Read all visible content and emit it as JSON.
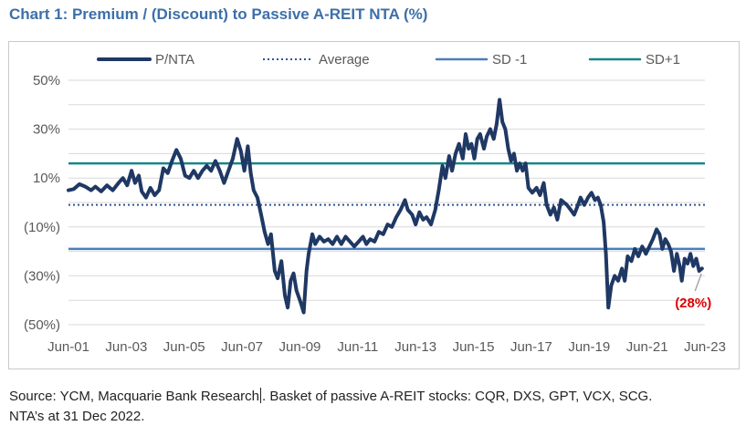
{
  "title": "Chart 1: Premium / (Discount) to Passive A-REIT NTA (%)",
  "source": {
    "line1_part1": "Source: YCM, Macquarie Bank Research",
    "line1_part2": ". Basket of passive A-REIT stocks: CQR, DXS, GPT, VCX, SCG.",
    "line2": "NTA’s at 31 Dec 2022."
  },
  "colors": {
    "pnta": "#1f3864",
    "average": "#2e5597",
    "sd_minus": "#4a7ebb",
    "sd_plus": "#17868b",
    "annotation": "#e00000",
    "grid": "#d9d9d9",
    "title": "#3d6fa8"
  },
  "chart_data": {
    "type": "line",
    "title": "Chart 1: Premium / (Discount) to Passive A-REIT NTA (%)",
    "xlabel": "",
    "ylabel": "",
    "x_ticks": [
      "Jun-01",
      "Jun-03",
      "Jun-05",
      "Jun-07",
      "Jun-09",
      "Jun-11",
      "Jun-13",
      "Jun-15",
      "Jun-17",
      "Jun-19",
      "Jun-21",
      "Jun-23"
    ],
    "y_ticks": [
      "50%",
      "30%",
      "10%",
      "(10%)",
      "(30%)",
      "(50%)"
    ],
    "y_tick_values": [
      50,
      30,
      10,
      -10,
      -30,
      -50
    ],
    "ylim": [
      -50,
      50
    ],
    "xlim": [
      2001.42,
      2023.42
    ],
    "grid": true,
    "legend_position": "top",
    "legend": [
      "P/NTA",
      "Average",
      "SD -1",
      "SD+1"
    ],
    "reference_lines": [
      {
        "name": "Average",
        "value": -1,
        "style": "dotted"
      },
      {
        "name": "SD -1",
        "value": -19,
        "style": "solid"
      },
      {
        "name": "SD+1",
        "value": 16,
        "style": "solid"
      }
    ],
    "annotation": {
      "label": "(28%)",
      "x": 2023.3,
      "y": -28
    },
    "series": [
      {
        "name": "P/NTA",
        "points": [
          [
            2001.42,
            5
          ],
          [
            2001.6,
            5.5
          ],
          [
            2001.8,
            7.5
          ],
          [
            2002.0,
            6.5
          ],
          [
            2002.2,
            5
          ],
          [
            2002.35,
            6.5
          ],
          [
            2002.55,
            4.5
          ],
          [
            2002.75,
            7
          ],
          [
            2002.95,
            5
          ],
          [
            2003.15,
            8
          ],
          [
            2003.3,
            10
          ],
          [
            2003.45,
            7
          ],
          [
            2003.6,
            13
          ],
          [
            2003.72,
            8
          ],
          [
            2003.85,
            11
          ],
          [
            2003.95,
            4.5
          ],
          [
            2004.1,
            2
          ],
          [
            2004.25,
            6
          ],
          [
            2004.4,
            3
          ],
          [
            2004.55,
            5
          ],
          [
            2004.7,
            14
          ],
          [
            2004.85,
            12
          ],
          [
            2005.0,
            17
          ],
          [
            2005.15,
            21.5
          ],
          [
            2005.3,
            18
          ],
          [
            2005.45,
            11
          ],
          [
            2005.6,
            10
          ],
          [
            2005.75,
            13
          ],
          [
            2005.9,
            10
          ],
          [
            2006.05,
            13
          ],
          [
            2006.2,
            15
          ],
          [
            2006.35,
            13
          ],
          [
            2006.5,
            17
          ],
          [
            2006.65,
            13
          ],
          [
            2006.8,
            8
          ],
          [
            2006.95,
            13
          ],
          [
            2007.1,
            18
          ],
          [
            2007.25,
            26
          ],
          [
            2007.38,
            21
          ],
          [
            2007.5,
            13
          ],
          [
            2007.62,
            23
          ],
          [
            2007.72,
            12
          ],
          [
            2007.82,
            5
          ],
          [
            2007.95,
            2
          ],
          [
            2008.08,
            -5
          ],
          [
            2008.2,
            -12
          ],
          [
            2008.32,
            -17
          ],
          [
            2008.42,
            -13
          ],
          [
            2008.55,
            -28
          ],
          [
            2008.65,
            -31
          ],
          [
            2008.78,
            -24
          ],
          [
            2008.9,
            -38
          ],
          [
            2009.0,
            -43
          ],
          [
            2009.1,
            -32
          ],
          [
            2009.2,
            -29
          ],
          [
            2009.3,
            -36
          ],
          [
            2009.45,
            -41
          ],
          [
            2009.55,
            -45
          ],
          [
            2009.65,
            -28
          ],
          [
            2009.72,
            -21
          ],
          [
            2009.85,
            -13
          ],
          [
            2009.95,
            -17
          ],
          [
            2010.1,
            -14
          ],
          [
            2010.25,
            -16
          ],
          [
            2010.4,
            -15
          ],
          [
            2010.55,
            -17
          ],
          [
            2010.7,
            -14
          ],
          [
            2010.85,
            -17
          ],
          [
            2011.0,
            -14
          ],
          [
            2011.15,
            -16
          ],
          [
            2011.3,
            -18
          ],
          [
            2011.45,
            -16
          ],
          [
            2011.6,
            -14
          ],
          [
            2011.72,
            -17
          ],
          [
            2011.85,
            -15
          ],
          [
            2012.0,
            -16
          ],
          [
            2012.15,
            -12
          ],
          [
            2012.3,
            -13
          ],
          [
            2012.45,
            -9
          ],
          [
            2012.6,
            -10
          ],
          [
            2012.75,
            -6
          ],
          [
            2012.9,
            -3
          ],
          [
            2013.05,
            1
          ],
          [
            2013.15,
            -3
          ],
          [
            2013.3,
            -5
          ],
          [
            2013.42,
            -9
          ],
          [
            2013.55,
            -4
          ],
          [
            2013.68,
            -7
          ],
          [
            2013.8,
            -6
          ],
          [
            2013.95,
            -9
          ],
          [
            2014.1,
            -3
          ],
          [
            2014.22,
            5
          ],
          [
            2014.35,
            15
          ],
          [
            2014.45,
            10
          ],
          [
            2014.58,
            19
          ],
          [
            2014.68,
            13
          ],
          [
            2014.8,
            20
          ],
          [
            2014.92,
            24
          ],
          [
            2015.05,
            18
          ],
          [
            2015.15,
            28
          ],
          [
            2015.25,
            22
          ],
          [
            2015.35,
            24
          ],
          [
            2015.45,
            18
          ],
          [
            2015.55,
            26
          ],
          [
            2015.65,
            28
          ],
          [
            2015.78,
            22
          ],
          [
            2015.88,
            27
          ],
          [
            2016.0,
            30
          ],
          [
            2016.12,
            26
          ],
          [
            2016.22,
            32
          ],
          [
            2016.32,
            42
          ],
          [
            2016.42,
            33
          ],
          [
            2016.52,
            30
          ],
          [
            2016.62,
            22
          ],
          [
            2016.72,
            17
          ],
          [
            2016.82,
            20
          ],
          [
            2016.92,
            13
          ],
          [
            2017.02,
            16
          ],
          [
            2017.12,
            13
          ],
          [
            2017.22,
            16
          ],
          [
            2017.32,
            6
          ],
          [
            2017.45,
            4
          ],
          [
            2017.6,
            6
          ],
          [
            2017.72,
            3
          ],
          [
            2017.85,
            8
          ],
          [
            2017.95,
            -1
          ],
          [
            2018.08,
            -5
          ],
          [
            2018.2,
            -2
          ],
          [
            2018.32,
            -7
          ],
          [
            2018.45,
            1
          ],
          [
            2018.55,
            0
          ],
          [
            2018.65,
            -1
          ],
          [
            2018.78,
            -3
          ],
          [
            2018.9,
            -5
          ],
          [
            2019.0,
            -2
          ],
          [
            2019.12,
            2
          ],
          [
            2019.25,
            -1
          ],
          [
            2019.38,
            2
          ],
          [
            2019.5,
            4
          ],
          [
            2019.62,
            1
          ],
          [
            2019.72,
            2
          ],
          [
            2019.82,
            -1
          ],
          [
            2019.92,
            -8
          ],
          [
            2020.0,
            -21
          ],
          [
            2020.08,
            -43
          ],
          [
            2020.18,
            -34
          ],
          [
            2020.3,
            -30
          ],
          [
            2020.42,
            -32
          ],
          [
            2020.55,
            -27
          ],
          [
            2020.65,
            -32
          ],
          [
            2020.75,
            -22
          ],
          [
            2020.88,
            -24
          ],
          [
            2021.0,
            -19
          ],
          [
            2021.12,
            -22
          ],
          [
            2021.25,
            -18
          ],
          [
            2021.38,
            -21
          ],
          [
            2021.5,
            -18
          ],
          [
            2021.62,
            -15
          ],
          [
            2021.75,
            -11
          ],
          [
            2021.85,
            -13
          ],
          [
            2021.95,
            -19
          ],
          [
            2022.05,
            -15
          ],
          [
            2022.15,
            -17
          ],
          [
            2022.25,
            -20
          ],
          [
            2022.35,
            -28
          ],
          [
            2022.45,
            -21
          ],
          [
            2022.55,
            -26
          ],
          [
            2022.62,
            -32
          ],
          [
            2022.72,
            -23
          ],
          [
            2022.82,
            -25
          ],
          [
            2022.92,
            -21
          ],
          [
            2023.02,
            -26
          ],
          [
            2023.12,
            -23
          ],
          [
            2023.22,
            -28
          ],
          [
            2023.32,
            -27
          ]
        ]
      }
    ]
  }
}
